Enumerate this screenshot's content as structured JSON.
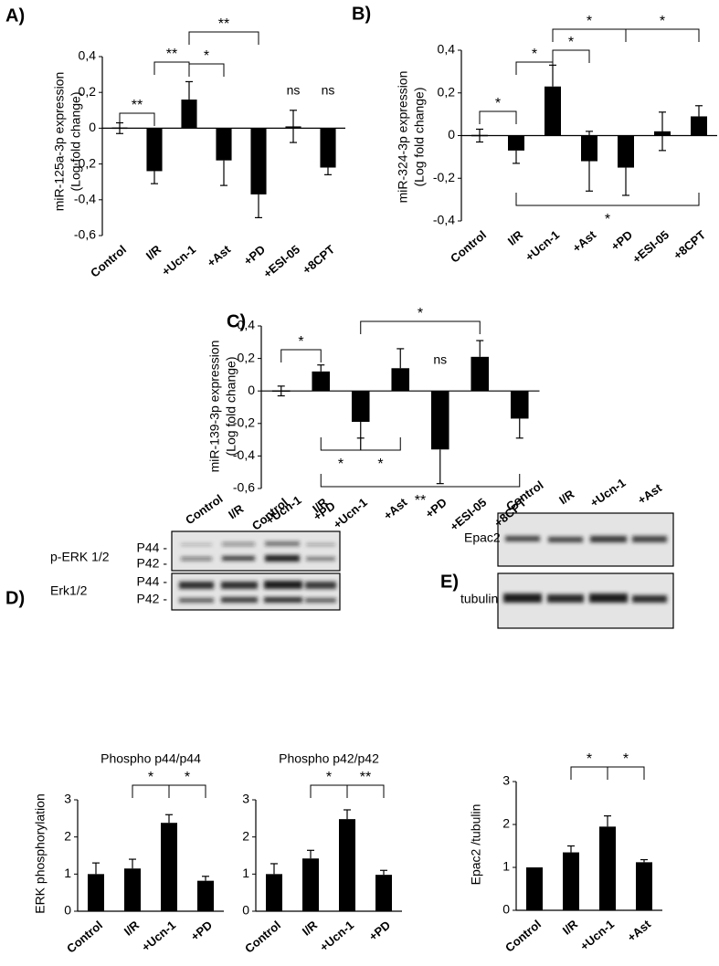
{
  "panels": [
    "A)",
    "B)",
    "C)",
    "D)",
    "E)"
  ],
  "blots": [
    {
      "lanes": [
        "Control",
        "I/R",
        "+Ucn-1",
        "+PD"
      ],
      "rows": [
        {
          "label": "p-ERK 1/2",
          "marks": [
            "P44 -",
            "P42 -"
          ]
        },
        {
          "label": "Erk1/2",
          "marks": [
            "P44 -",
            "P42 -"
          ]
        }
      ]
    },
    {
      "lanes": [
        "Control",
        "I/R",
        "+Ucn-1",
        "+Ast"
      ],
      "rows": [
        {
          "label": "Epac2"
        },
        {
          "label": "tubulin"
        }
      ]
    }
  ],
  "chart_data": [
    {
      "type": "bar",
      "ylabel": [
        "miR-125a-3p expression",
        "(Log fold change)"
      ],
      "categories": [
        "Control",
        "I/R",
        "+Ucn-1",
        "+Ast",
        "+PD",
        "+ESI-05",
        "+8CPT"
      ],
      "values": [
        0,
        -0.24,
        0.16,
        -0.18,
        -0.37,
        0.01,
        -0.22
      ],
      "errors": [
        0.03,
        0.07,
        0.1,
        0.14,
        0.13,
        0.09,
        0.04
      ],
      "color": "#000000",
      "ylim": [
        -0.6,
        0.4
      ],
      "yticks": [
        {
          "value": -0.6,
          "label": "-0,6"
        },
        {
          "value": -0.4,
          "label": "-0,4"
        },
        {
          "value": -0.2,
          "label": "-0,2"
        },
        0,
        {
          "value": 0.2,
          "label": "0,2"
        },
        {
          "value": 0.4,
          "label": "0,4"
        }
      ],
      "annotations": [
        {
          "text": "**",
          "between": [
            0,
            1
          ],
          "side": "above"
        },
        {
          "text": "**",
          "between": [
            1,
            2
          ],
          "side": "above"
        },
        {
          "text": "*",
          "between": [
            2,
            3
          ],
          "side": "above"
        },
        {
          "text": "**",
          "between": [
            2,
            4
          ],
          "side": "above"
        },
        {
          "text": "ns",
          "at": 5
        },
        {
          "text": "ns",
          "at": 6
        }
      ]
    },
    {
      "type": "bar",
      "ylabel": [
        "miR-324-3p expression",
        "(Log fold change)"
      ],
      "categories": [
        "Control",
        "I/R",
        "+Ucn-1",
        "+Ast",
        "+PD",
        "+ESI-05",
        "+8CPT"
      ],
      "values": [
        0,
        -0.07,
        0.23,
        -0.12,
        -0.15,
        0.02,
        0.09
      ],
      "errors": [
        0.03,
        0.06,
        0.1,
        0.14,
        0.13,
        0.09,
        0.05
      ],
      "color": "#000000",
      "ylim": [
        -0.4,
        0.4
      ],
      "yticks": [
        {
          "value": -0.4,
          "label": "-0,4"
        },
        {
          "value": -0.2,
          "label": "-0,2"
        },
        0,
        {
          "value": 0.2,
          "label": "0,2"
        },
        {
          "value": 0.4,
          "label": "0,4"
        }
      ],
      "annotations": [
        {
          "text": "*",
          "between": [
            0,
            1
          ],
          "side": "above"
        },
        {
          "text": "*",
          "between": [
            1,
            2
          ],
          "side": "above"
        },
        {
          "text": "*",
          "between": [
            2,
            3
          ],
          "side": "above"
        },
        {
          "text": "*",
          "between": [
            2,
            4
          ],
          "side": "above"
        },
        {
          "text": "*",
          "between": [
            4,
            6
          ],
          "side": "above"
        },
        {
          "text": "*",
          "between": [
            1,
            6
          ],
          "side": "below"
        }
      ]
    },
    {
      "type": "bar",
      "ylabel": [
        "miR-139-3p expression",
        "(Log fold change)"
      ],
      "categories": [
        "Control",
        "I/R",
        "+Ucn-1",
        "+Ast",
        "+PD",
        "+ESI-05",
        "+8CPT"
      ],
      "values": [
        0,
        0.12,
        -0.19,
        0.14,
        -0.36,
        0.21,
        -0.17
      ],
      "errors": [
        0.03,
        0.04,
        0.1,
        0.12,
        0.21,
        0.1,
        0.12
      ],
      "color": "#000000",
      "ylim": [
        -0.6,
        0.4
      ],
      "yticks": [
        {
          "value": -0.6,
          "label": "-0,6"
        },
        {
          "value": -0.4,
          "label": "-0,4"
        },
        {
          "value": -0.2,
          "label": "-0,2"
        },
        0,
        {
          "value": 0.2,
          "label": "0,2"
        },
        {
          "value": 0.4,
          "label": "0,4"
        }
      ],
      "annotations": [
        {
          "text": "*",
          "between": [
            0,
            1
          ],
          "side": "above"
        },
        {
          "text": "*",
          "between": [
            2,
            5
          ],
          "side": "above"
        },
        {
          "text": "ns",
          "at": 4
        },
        {
          "text": "*",
          "between": [
            1,
            2
          ],
          "side": "below"
        },
        {
          "text": "*",
          "between": [
            2,
            3
          ],
          "side": "below"
        },
        {
          "text": "**",
          "between": [
            1,
            6
          ],
          "side": "below"
        }
      ]
    },
    {
      "type": "bar",
      "title": "Phospho p44/p44",
      "ylabel": [
        "ERK phosphorylation"
      ],
      "categories": [
        "Control",
        "I/R",
        "+Ucn-1",
        "+PD"
      ],
      "values": [
        1.0,
        1.15,
        2.38,
        0.82
      ],
      "errors": [
        0.3,
        0.25,
        0.22,
        0.12
      ],
      "color": "#000000",
      "ylim": [
        0,
        3
      ],
      "yticks": [
        0,
        1,
        2,
        3
      ],
      "annotations": [
        {
          "text": "*",
          "between": [
            1,
            2
          ],
          "side": "above"
        },
        {
          "text": "*",
          "between": [
            2,
            3
          ],
          "side": "above"
        }
      ]
    },
    {
      "type": "bar",
      "title": "Phospho p42/p42",
      "categories": [
        "Control",
        "I/R",
        "+Ucn-1",
        "+PD"
      ],
      "values": [
        1.0,
        1.42,
        2.48,
        0.98
      ],
      "errors": [
        0.28,
        0.22,
        0.25,
        0.12
      ],
      "color": "#000000",
      "ylim": [
        0,
        3
      ],
      "yticks": [
        0,
        1,
        2,
        3
      ],
      "annotations": [
        {
          "text": "*",
          "between": [
            1,
            2
          ],
          "side": "above"
        },
        {
          "text": "**",
          "between": [
            2,
            3
          ],
          "side": "above"
        }
      ]
    },
    {
      "type": "bar",
      "ylabel": [
        "Epac2 /tubulin"
      ],
      "categories": [
        "Control",
        "I/R",
        "+Ucn-1",
        "+Ast"
      ],
      "values": [
        1.0,
        1.35,
        1.95,
        1.12
      ],
      "errors": [
        0,
        0.15,
        0.25,
        0.06
      ],
      "color": "#000000",
      "ylim": [
        0,
        3
      ],
      "yticks": [
        0,
        1,
        2,
        3
      ],
      "annotations": [
        {
          "text": "*",
          "between": [
            1,
            2
          ],
          "side": "above"
        },
        {
          "text": "*",
          "between": [
            2,
            3
          ],
          "side": "above"
        }
      ]
    }
  ]
}
